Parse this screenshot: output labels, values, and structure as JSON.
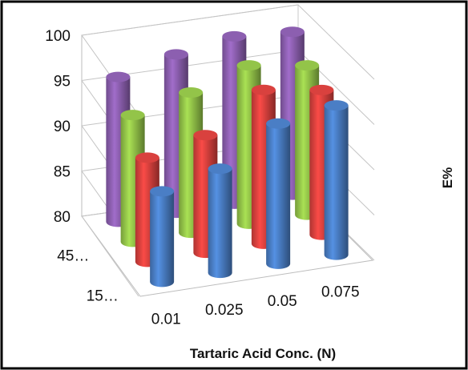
{
  "chart_data": {
    "type": "bar",
    "subtype": "3d-cylinder",
    "title": "",
    "xlabel": "Tartaric Acid Conc. (N)",
    "ylabel": "",
    "zlabel": "E%",
    "x_categories": [
      "0.01",
      "0.025",
      "0.05",
      "0.075"
    ],
    "depth_categories": [
      "15…",
      "",
      "45…",
      ""
    ],
    "zlim": [
      80,
      100
    ],
    "z_ticks": [
      "80",
      "85",
      "90",
      "95",
      "100"
    ],
    "grid": true,
    "legend": "none",
    "series": [
      {
        "color": "#4a7ec5",
        "values": [
          90.0,
          91.5,
          95.5,
          96.5
        ]
      },
      {
        "color": "#d9413e",
        "values": [
          91.5,
          93.0,
          97.0,
          96.0
        ]
      },
      {
        "color": "#93c449",
        "values": [
          94.0,
          95.5,
          97.5,
          96.5
        ]
      },
      {
        "color": "#8c5fb0",
        "values": [
          96.0,
          97.5,
          98.5,
          98.0
        ]
      }
    ]
  }
}
